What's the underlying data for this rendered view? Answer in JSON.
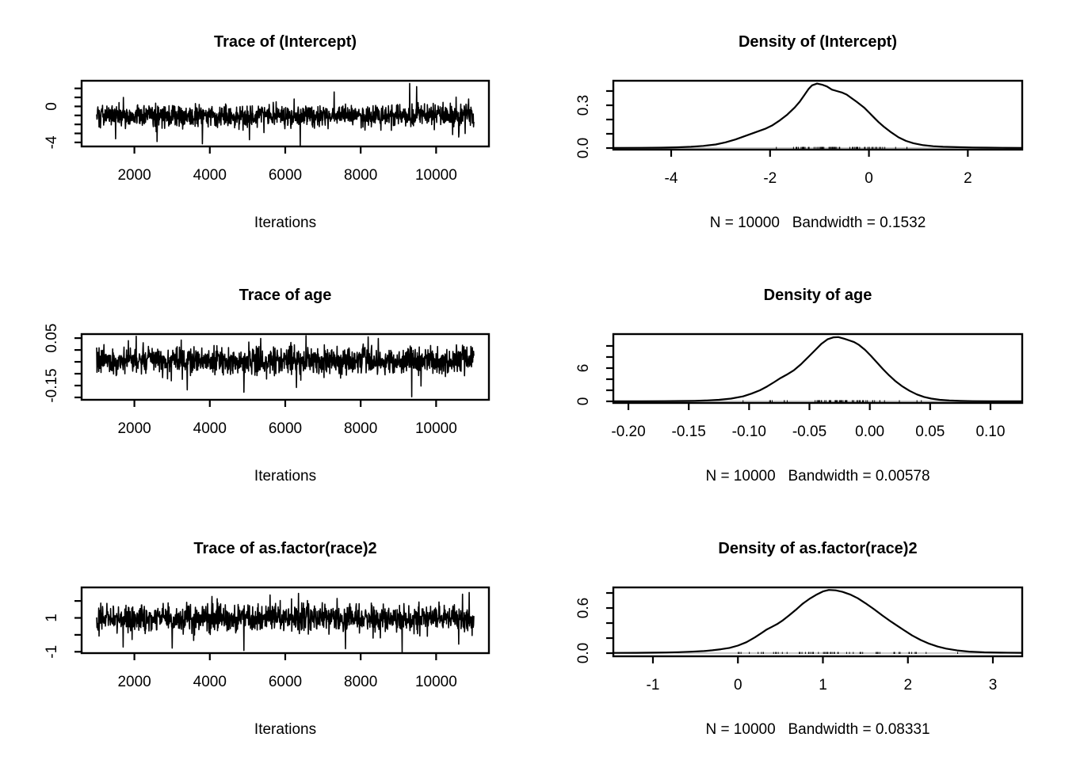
{
  "figure": {
    "background": "#ffffff",
    "foreground": "#000000",
    "zero_line_color": "#c8c8c8"
  },
  "chart_data": [
    {
      "kind": "trace",
      "type": "line",
      "title": "Trace of (Intercept)",
      "xlabel": "Iterations",
      "x_ticks": [
        2000,
        4000,
        6000,
        8000,
        10000
      ],
      "x_tick_labels": [
        "2000",
        "4000",
        "6000",
        "8000",
        "10000"
      ],
      "xlim": [
        601,
        11400
      ],
      "x_data_range": [
        1001,
        11000
      ],
      "y_ticks": [
        2,
        1,
        0,
        -1,
        -2,
        -3,
        -4
      ],
      "y_tick_labeled": [
        {
          "v": 0,
          "label": "0"
        },
        {
          "v": -4,
          "label": "-4"
        }
      ],
      "ylim": [
        -4.45,
        2.85
      ],
      "series": {
        "mean": -1.0,
        "sd": 0.62,
        "n": 1300,
        "seed": 101,
        "outliers": [
          [
            1500,
            -3.6
          ],
          [
            2600,
            -3.9
          ],
          [
            3800,
            -4.15
          ],
          [
            5050,
            -3.7
          ],
          [
            6400,
            -4.35
          ],
          [
            7300,
            1.6
          ],
          [
            9300,
            2.55
          ],
          [
            9480,
            2.2
          ],
          [
            10600,
            -3.4
          ]
        ]
      }
    },
    {
      "kind": "density",
      "type": "line",
      "title": "Density of (Intercept)",
      "sublabel": "N = 10000   Bandwidth = 0.1532",
      "n": 10000,
      "bandwidth": 0.1532,
      "x_ticks": [
        -4,
        -2,
        0,
        2
      ],
      "x_tick_labels": [
        "-4",
        "-2",
        "0",
        "2"
      ],
      "xlim": [
        -5.17,
        3.1
      ],
      "y_ticks": [
        0,
        0.1,
        0.2,
        0.3,
        0.4
      ],
      "y_tick_labeled": [
        {
          "v": 0,
          "label": "0.0"
        },
        {
          "v": 0.3,
          "label": "0.3"
        }
      ],
      "ylim": [
        -0.011,
        0.472
      ],
      "curve": [
        [
          -5.17,
          0.001
        ],
        [
          -4.6,
          0.002
        ],
        [
          -4.2,
          0.003
        ],
        [
          -3.9,
          0.005
        ],
        [
          -3.6,
          0.009
        ],
        [
          -3.35,
          0.015
        ],
        [
          -3.1,
          0.025
        ],
        [
          -2.9,
          0.04
        ],
        [
          -2.7,
          0.06
        ],
        [
          -2.5,
          0.085
        ],
        [
          -2.3,
          0.11
        ],
        [
          -2.1,
          0.135
        ],
        [
          -1.95,
          0.16
        ],
        [
          -1.8,
          0.195
        ],
        [
          -1.65,
          0.235
        ],
        [
          -1.5,
          0.285
        ],
        [
          -1.4,
          0.325
        ],
        [
          -1.3,
          0.375
        ],
        [
          -1.22,
          0.415
        ],
        [
          -1.15,
          0.44
        ],
        [
          -1.05,
          0.452
        ],
        [
          -0.95,
          0.445
        ],
        [
          -0.85,
          0.432
        ],
        [
          -0.75,
          0.41
        ],
        [
          -0.65,
          0.4
        ],
        [
          -0.55,
          0.39
        ],
        [
          -0.45,
          0.375
        ],
        [
          -0.35,
          0.35
        ],
        [
          -0.25,
          0.325
        ],
        [
          -0.1,
          0.285
        ],
        [
          0.0,
          0.25
        ],
        [
          0.1,
          0.215
        ],
        [
          0.2,
          0.18
        ],
        [
          0.3,
          0.15
        ],
        [
          0.45,
          0.11
        ],
        [
          0.6,
          0.075
        ],
        [
          0.75,
          0.05
        ],
        [
          0.9,
          0.034
        ],
        [
          1.1,
          0.02
        ],
        [
          1.3,
          0.013
        ],
        [
          1.5,
          0.009
        ],
        [
          1.8,
          0.006
        ],
        [
          2.1,
          0.004
        ],
        [
          2.4,
          0.003
        ],
        [
          2.7,
          0.002
        ],
        [
          3.1,
          0.001
        ]
      ]
    },
    {
      "kind": "trace",
      "type": "line",
      "title": "Trace of age",
      "xlabel": "Iterations",
      "x_ticks": [
        2000,
        4000,
        6000,
        8000,
        10000
      ],
      "x_tick_labels": [
        "2000",
        "4000",
        "6000",
        "8000",
        "10000"
      ],
      "xlim": [
        601,
        11400
      ],
      "x_data_range": [
        1001,
        11000
      ],
      "y_ticks": [
        0.05,
        0,
        -0.05,
        -0.1,
        -0.15,
        -0.2
      ],
      "y_tick_labeled": [
        {
          "v": 0.05,
          "label": "0.05"
        },
        {
          "v": -0.15,
          "label": "-0.15"
        }
      ],
      "ylim": [
        -0.21,
        0.067
      ],
      "series": {
        "mean": -0.045,
        "sd": 0.028,
        "n": 1300,
        "seed": 202,
        "outliers": [
          [
            2050,
            0.058
          ],
          [
            3400,
            -0.168
          ],
          [
            4900,
            -0.178
          ],
          [
            6300,
            -0.158
          ],
          [
            6550,
            0.06
          ],
          [
            8200,
            0.055
          ],
          [
            9350,
            -0.197
          ],
          [
            9600,
            -0.152
          ]
        ]
      }
    },
    {
      "kind": "density",
      "type": "line",
      "title": "Density of age",
      "sublabel": "N = 10000   Bandwidth = 0.00578",
      "n": 10000,
      "bandwidth": 0.00578,
      "x_ticks": [
        -0.2,
        -0.15,
        -0.1,
        -0.05,
        0,
        0.05,
        0.1
      ],
      "x_tick_labels": [
        "-0.20",
        "-0.15",
        "-0.10",
        "-0.05",
        "0.00",
        "0.05",
        "0.10"
      ],
      "xlim": [
        -0.2125,
        0.1263
      ],
      "y_ticks": [
        0,
        2,
        4,
        6,
        8,
        10
      ],
      "y_tick_labeled": [
        {
          "v": 0,
          "label": "0"
        },
        {
          "v": 6,
          "label": "6"
        }
      ],
      "ylim": [
        -0.29,
        12.14
      ],
      "curve": [
        [
          -0.2125,
          0.01
        ],
        [
          -0.19,
          0.02
        ],
        [
          -0.17,
          0.04
        ],
        [
          -0.155,
          0.07
        ],
        [
          -0.145,
          0.1
        ],
        [
          -0.135,
          0.17
        ],
        [
          -0.125,
          0.28
        ],
        [
          -0.115,
          0.5
        ],
        [
          -0.105,
          0.9
        ],
        [
          -0.098,
          1.4
        ],
        [
          -0.091,
          2.0
        ],
        [
          -0.085,
          2.7
        ],
        [
          -0.079,
          3.5
        ],
        [
          -0.074,
          4.2
        ],
        [
          -0.069,
          4.8
        ],
        [
          -0.063,
          5.6
        ],
        [
          -0.057,
          6.7
        ],
        [
          -0.051,
          8.0
        ],
        [
          -0.045,
          9.3
        ],
        [
          -0.04,
          10.4
        ],
        [
          -0.035,
          11.2
        ],
        [
          -0.03,
          11.55
        ],
        [
          -0.026,
          11.6
        ],
        [
          -0.021,
          11.3
        ],
        [
          -0.017,
          11.0
        ],
        [
          -0.013,
          10.7
        ],
        [
          -0.009,
          10.2
        ],
        [
          -0.004,
          9.3
        ],
        [
          0.001,
          8.2
        ],
        [
          0.006,
          7.0
        ],
        [
          0.011,
          5.8
        ],
        [
          0.016,
          4.7
        ],
        [
          0.021,
          3.7
        ],
        [
          0.027,
          2.7
        ],
        [
          0.033,
          1.9
        ],
        [
          0.039,
          1.25
        ],
        [
          0.045,
          0.8
        ],
        [
          0.051,
          0.5
        ],
        [
          0.058,
          0.28
        ],
        [
          0.066,
          0.15
        ],
        [
          0.075,
          0.08
        ],
        [
          0.085,
          0.04
        ],
        [
          0.1,
          0.02
        ],
        [
          0.115,
          0.01
        ],
        [
          0.1263,
          0.008
        ]
      ]
    },
    {
      "kind": "trace",
      "type": "line",
      "title": "Trace of as.factor(race)2",
      "xlabel": "Iterations",
      "x_ticks": [
        2000,
        4000,
        6000,
        8000,
        10000
      ],
      "x_tick_labels": [
        "2000",
        "4000",
        "6000",
        "8000",
        "10000"
      ],
      "xlim": [
        601,
        11400
      ],
      "x_data_range": [
        1001,
        11000
      ],
      "y_ticks": [
        2,
        1,
        0,
        -1
      ],
      "y_tick_labeled": [
        {
          "v": 1,
          "label": "1"
        },
        {
          "v": -1,
          "label": "-1"
        }
      ],
      "ylim": [
        -1.08,
        2.8
      ],
      "series": {
        "mean": 0.98,
        "sd": 0.38,
        "n": 1300,
        "seed": 303,
        "outliers": [
          [
            1700,
            -0.72
          ],
          [
            3000,
            -0.78
          ],
          [
            4900,
            -0.92
          ],
          [
            5600,
            2.35
          ],
          [
            6350,
            2.45
          ],
          [
            7600,
            -0.82
          ],
          [
            9100,
            -1.02
          ],
          [
            10700,
            2.4
          ],
          [
            10880,
            2.5
          ]
        ]
      }
    },
    {
      "kind": "density",
      "type": "line",
      "title": "Density of as.factor(race)2",
      "sublabel": "N = 10000   Bandwidth = 0.08331",
      "n": 10000,
      "bandwidth": 0.08331,
      "x_ticks": [
        -1,
        0,
        1,
        2,
        3
      ],
      "x_tick_labels": [
        "-1",
        "0",
        "1",
        "2",
        "3"
      ],
      "xlim": [
        -1.466,
        3.345
      ],
      "y_ticks": [
        0,
        0.2,
        0.4,
        0.6,
        0.8
      ],
      "y_tick_labeled": [
        {
          "v": 0,
          "label": "0.0"
        },
        {
          "v": 0.6,
          "label": "0.6"
        }
      ],
      "ylim": [
        -0.042,
        0.874
      ],
      "curve": [
        [
          -1.466,
          0.003
        ],
        [
          -1.2,
          0.004
        ],
        [
          -1.0,
          0.006
        ],
        [
          -0.85,
          0.009
        ],
        [
          -0.7,
          0.013
        ],
        [
          -0.55,
          0.019
        ],
        [
          -0.4,
          0.028
        ],
        [
          -0.3,
          0.038
        ],
        [
          -0.2,
          0.052
        ],
        [
          -0.1,
          0.07
        ],
        [
          0.0,
          0.1
        ],
        [
          0.1,
          0.145
        ],
        [
          0.2,
          0.21
        ],
        [
          0.28,
          0.27
        ],
        [
          0.34,
          0.315
        ],
        [
          0.4,
          0.35
        ],
        [
          0.46,
          0.385
        ],
        [
          0.52,
          0.43
        ],
        [
          0.6,
          0.5
        ],
        [
          0.68,
          0.575
        ],
        [
          0.76,
          0.655
        ],
        [
          0.84,
          0.72
        ],
        [
          0.92,
          0.775
        ],
        [
          1.0,
          0.82
        ],
        [
          1.07,
          0.84
        ],
        [
          1.15,
          0.835
        ],
        [
          1.23,
          0.815
        ],
        [
          1.32,
          0.78
        ],
        [
          1.41,
          0.73
        ],
        [
          1.5,
          0.665
        ],
        [
          1.6,
          0.585
        ],
        [
          1.7,
          0.5
        ],
        [
          1.8,
          0.42
        ],
        [
          1.88,
          0.36
        ],
        [
          1.96,
          0.3
        ],
        [
          2.05,
          0.235
        ],
        [
          2.15,
          0.175
        ],
        [
          2.25,
          0.125
        ],
        [
          2.35,
          0.088
        ],
        [
          2.45,
          0.06
        ],
        [
          2.58,
          0.036
        ],
        [
          2.72,
          0.02
        ],
        [
          2.9,
          0.011
        ],
        [
          3.1,
          0.006
        ],
        [
          3.345,
          0.004
        ]
      ]
    }
  ]
}
